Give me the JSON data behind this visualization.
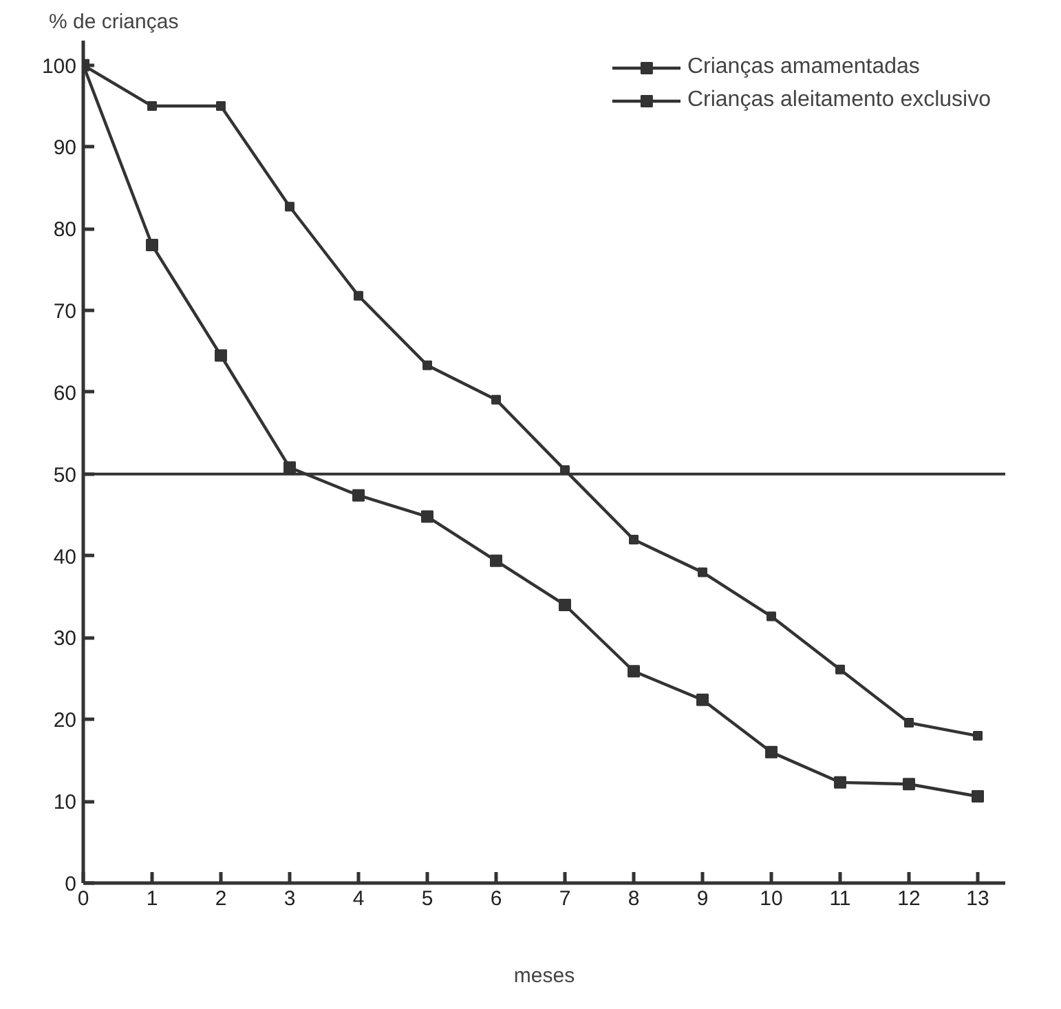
{
  "chart_data": {
    "type": "line",
    "ylabel": "% de crianças",
    "xlabel": "meses",
    "x": [
      0,
      1,
      2,
      3,
      4,
      5,
      6,
      7,
      8,
      9,
      10,
      11,
      12,
      13
    ],
    "series": [
      {
        "name": "Crianças amamentadas",
        "color": "#333333",
        "marker": "square",
        "values": [
          100,
          95,
          95,
          82.7,
          71.8,
          63.3,
          59.1,
          50.5,
          42,
          38,
          32.6,
          26.1,
          19.6,
          18
        ]
      },
      {
        "name": "Crianças aleitamento exclusivo",
        "color": "#333333",
        "marker": "square",
        "values": [
          100,
          78,
          64.5,
          50.8,
          47.4,
          44.8,
          39.4,
          34,
          25.9,
          22.4,
          16,
          12.3,
          12.1,
          10.6
        ]
      }
    ],
    "ref_lines": [
      {
        "axis": "y",
        "value": 50,
        "color": "#333333"
      }
    ],
    "xlim": [
      0,
      13.4
    ],
    "ylim": [
      0,
      103
    ],
    "xticks": [
      0,
      1,
      2,
      3,
      4,
      5,
      6,
      7,
      8,
      9,
      10,
      11,
      12,
      13
    ],
    "yticks": [
      0,
      10,
      20,
      30,
      40,
      50,
      60,
      70,
      80,
      90,
      100
    ],
    "grid": false,
    "legend": "top right",
    "line_style": "solid"
  }
}
